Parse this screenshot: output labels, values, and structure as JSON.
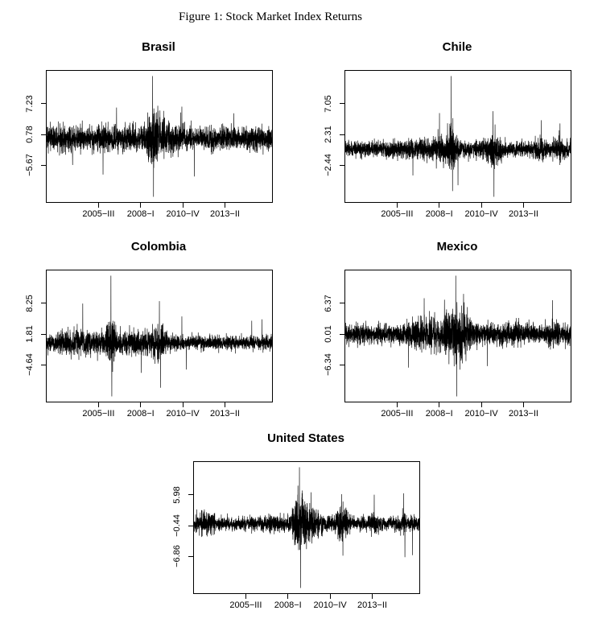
{
  "figure": {
    "title": "Figure 1: Stock Market Index Returns",
    "background_color": "#ffffff",
    "text_color": "#000000"
  },
  "chart_data": {
    "type": "line",
    "title": "Figure 1: Stock Market Index Returns",
    "line_color": "#000000",
    "grid": "off",
    "legend": "none",
    "layout": "2x2 grid of country panels plus one centered bottom panel; daily return series with volatility clustering around 2008-I",
    "x_axis": {
      "tick_labels": [
        "2005−III",
        "2008−I",
        "2010−IV",
        "2013−II"
      ],
      "tick_positions": [
        0.23,
        0.417,
        0.604,
        0.791
      ]
    },
    "panels": [
      {
        "title": "Brasil",
        "ylim": [
          -13.35,
          14.09
        ],
        "y_ticks": [
          {
            "value": 7.23,
            "label": "7.23"
          },
          {
            "value": 0.78,
            "label": "0.78"
          },
          {
            "value": -5.67,
            "label": "−5.67"
          }
        ],
        "sim": {
          "seed": 2003,
          "n": 2800,
          "base_vol": 1.15,
          "soft_limit": 11.5,
          "clusters": [
            {
              "c": 0.47,
              "w": 0.018,
              "a": 2.6
            },
            {
              "c": 0.52,
              "w": 0.04,
              "a": 0.7
            },
            {
              "c": 0.3,
              "w": 0.06,
              "a": 0.3
            },
            {
              "c": 0.07,
              "w": 0.04,
              "a": 0.3
            }
          ],
          "jumps": [
            {
              "p": 0.47,
              "v": 12.99
            },
            {
              "p": 0.474,
              "v": -12.25
            },
            {
              "p": 0.25,
              "v": -7.6
            },
            {
              "p": 0.655,
              "v": -8.0
            },
            {
              "p": 0.31,
              "v": 6.4
            },
            {
              "p": 0.115,
              "v": -5.6
            },
            {
              "p": 0.83,
              "v": 5.2
            },
            {
              "p": 0.6,
              "v": 6.6
            }
          ]
        }
      },
      {
        "title": "Chile",
        "ylim": [
          -8.08,
          12.1
        ],
        "y_ticks": [
          {
            "value": 7.05,
            "label": "7.05"
          },
          {
            "value": 2.31,
            "label": "2.31"
          },
          {
            "value": -2.44,
            "label": "−2.44"
          }
        ],
        "sim": {
          "seed": 2717,
          "n": 2800,
          "base_vol": 0.55,
          "soft_limit": 7.0,
          "clusters": [
            {
              "c": 0.47,
              "w": 0.014,
              "a": 1.4
            },
            {
              "c": 0.42,
              "w": 0.05,
              "a": 0.45
            },
            {
              "c": 0.66,
              "w": 0.022,
              "a": 0.95
            },
            {
              "c": 0.86,
              "w": 0.02,
              "a": 0.35
            },
            {
              "c": 0.95,
              "w": 0.013,
              "a": 0.4
            },
            {
              "c": 0.25,
              "w": 0.1,
              "a": 0.1
            }
          ],
          "jumps": [
            {
              "p": 0.47,
              "v": 11.29
            },
            {
              "p": 0.476,
              "v": -6.4
            },
            {
              "p": 0.66,
              "v": -7.27
            },
            {
              "p": 0.655,
              "v": 5.9
            },
            {
              "p": 0.418,
              "v": 5.6
            },
            {
              "p": 0.3,
              "v": -4.0
            },
            {
              "p": 0.87,
              "v": 4.5
            },
            {
              "p": 0.953,
              "v": 4.0
            },
            {
              "p": 0.5,
              "v": -5.5
            }
          ]
        }
      },
      {
        "title": "Colombia",
        "ylim": [
          -12.31,
          15.11
        ],
        "y_ticks": [
          {
            "value": 8.25,
            "label": "8.25"
          },
          {
            "value": 1.81,
            "label": "1.81"
          },
          {
            "value": -4.64,
            "label": "−4.64"
          }
        ],
        "sim": {
          "seed": 909,
          "n": 2800,
          "base_vol": 0.7,
          "soft_limit": 10.5,
          "clusters": [
            {
              "c": 0.25,
              "w": 0.16,
              "a": 0.45
            },
            {
              "c": 0.285,
              "w": 0.012,
              "a": 2.2
            },
            {
              "c": 0.5,
              "w": 0.02,
              "a": 1.2
            },
            {
              "c": 0.1,
              "w": 0.05,
              "a": 0.3
            },
            {
              "c": 0.42,
              "w": 0.05,
              "a": 0.3
            }
          ],
          "jumps": [
            {
              "p": 0.285,
              "v": 14.01
            },
            {
              "p": 0.289,
              "v": -11.21
            },
            {
              "p": 0.16,
              "v": 8.2
            },
            {
              "p": 0.5,
              "v": 8.7
            },
            {
              "p": 0.505,
              "v": -9.4
            },
            {
              "p": 0.42,
              "v": -6.3
            },
            {
              "p": 0.6,
              "v": 5.5
            },
            {
              "p": 0.955,
              "v": 4.9
            },
            {
              "p": 0.91,
              "v": 4.6
            },
            {
              "p": 0.62,
              "v": -5.6
            }
          ]
        }
      },
      {
        "title": "Mexico",
        "ylim": [
          -13.91,
          13.13
        ],
        "y_ticks": [
          {
            "value": 6.37,
            "label": "6.37"
          },
          {
            "value": 0.01,
            "label": "0.01"
          },
          {
            "value": -6.34,
            "label": "−6.34"
          }
        ],
        "sim": {
          "seed": 404,
          "n": 2800,
          "base_vol": 1.0,
          "soft_limit": 11.0,
          "clusters": [
            {
              "c": 0.48,
              "w": 0.025,
              "a": 2.0
            },
            {
              "c": 0.53,
              "w": 0.03,
              "a": 1.3
            },
            {
              "c": 0.35,
              "w": 0.045,
              "a": 0.7
            },
            {
              "c": 0.42,
              "w": 0.03,
              "a": 0.6
            },
            {
              "c": 0.75,
              "w": 0.02,
              "a": 0.4
            },
            {
              "c": 0.92,
              "w": 0.015,
              "a": 0.45
            }
          ],
          "jumps": [
            {
              "p": 0.49,
              "v": 12.05
            },
            {
              "p": 0.494,
              "v": -12.83
            },
            {
              "p": 0.35,
              "v": 7.4
            },
            {
              "p": 0.44,
              "v": 7.1
            },
            {
              "p": 0.525,
              "v": 8.3
            },
            {
              "p": 0.28,
              "v": -6.9
            },
            {
              "p": 0.63,
              "v": -6.6
            },
            {
              "p": 0.92,
              "v": 7.0
            }
          ]
        }
      },
      {
        "title": "United States",
        "ylim": [
          -14.51,
          12.81
        ],
        "y_ticks": [
          {
            "value": 5.98,
            "label": "5.98"
          },
          {
            "value": -0.44,
            "label": "−0.44"
          },
          {
            "value": -6.86,
            "label": "−6.86"
          }
        ],
        "sim": {
          "seed": 1234,
          "n": 2800,
          "base_vol": 0.72,
          "soft_limit": 10.5,
          "clusters": [
            {
              "c": 0.47,
              "w": 0.022,
              "a": 2.6
            },
            {
              "c": 0.52,
              "w": 0.03,
              "a": 1.1
            },
            {
              "c": 0.655,
              "w": 0.02,
              "a": 1.05
            },
            {
              "c": 0.05,
              "w": 0.03,
              "a": 0.55
            },
            {
              "c": 0.8,
              "w": 0.013,
              "a": 0.45
            },
            {
              "c": 0.93,
              "w": 0.01,
              "a": 0.5
            },
            {
              "c": 0.35,
              "w": 0.05,
              "a": 0.2
            }
          ],
          "jumps": [
            {
              "p": 0.468,
              "v": 11.72
            },
            {
              "p": 0.4735,
              "v": -13.42
            },
            {
              "p": 0.52,
              "v": 6.5
            },
            {
              "p": 0.655,
              "v": 6.1
            },
            {
              "p": 0.661,
              "v": -6.7
            },
            {
              "p": 0.8,
              "v": 6.0
            },
            {
              "p": 0.93,
              "v": 6.3
            },
            {
              "p": 0.936,
              "v": -7.0
            },
            {
              "p": 0.97,
              "v": -6.6
            }
          ]
        }
      }
    ]
  }
}
